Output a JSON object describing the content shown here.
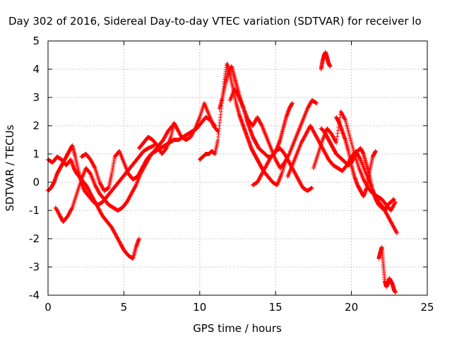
{
  "chart_data": {
    "type": "scatter",
    "title": "Day 302 of 2016, Sidereal Day-to-day VTEC variation (SDTVAR) for receiver lo",
    "xlabel": "GPS time / hours",
    "ylabel": "SDTVAR / TECUs",
    "xlim": [
      0,
      25
    ],
    "ylim": [
      -4,
      5
    ],
    "xticks": [
      "0",
      "5",
      "10",
      "15",
      "20",
      "25"
    ],
    "yticks": [
      "-4",
      "-3",
      "-2",
      "-1",
      "0",
      "1",
      "2",
      "3",
      "4",
      "5"
    ],
    "grid": true,
    "marker_color": "#ff0000",
    "marker": "plus",
    "series": [
      {
        "x": [
          0.0,
          0.3,
          0.6,
          0.9,
          1.2,
          1.5,
          1.7,
          1.9,
          2.2,
          2.5,
          2.7,
          3.0,
          3.3,
          3.6,
          3.9,
          4.2,
          4.5,
          4.8,
          5.0,
          5.3,
          5.6,
          5.8,
          6.0
        ],
        "y": [
          0.8,
          0.7,
          0.9,
          0.8,
          0.6,
          0.8,
          0.5,
          0.3,
          0.1,
          -0.1,
          -0.3,
          -0.6,
          -0.9,
          -1.2,
          -1.4,
          -1.6,
          -1.9,
          -2.2,
          -2.4,
          -2.6,
          -2.7,
          -2.3,
          -2.0
        ]
      },
      {
        "x": [
          0.0,
          0.2,
          0.4,
          0.6,
          0.8,
          1.0,
          1.2,
          1.4,
          1.6,
          1.8,
          2.0,
          2.2,
          2.4,
          2.7,
          3.0,
          3.3,
          3.6,
          3.9,
          4.2,
          4.5,
          4.8,
          5.1,
          5.4,
          5.7,
          6.0,
          6.3,
          6.6,
          7.0
        ],
        "y": [
          -0.3,
          -0.2,
          0.0,
          0.3,
          0.5,
          0.7,
          0.9,
          1.1,
          1.3,
          0.9,
          0.4,
          0.0,
          -0.3,
          -0.5,
          -0.7,
          -0.8,
          -0.7,
          -0.5,
          -0.3,
          -0.1,
          0.1,
          0.3,
          0.5,
          0.7,
          0.9,
          1.1,
          1.2,
          1.3
        ]
      },
      {
        "x": [
          0.5,
          0.8,
          1.0,
          1.3,
          1.6,
          1.9,
          2.2,
          2.5,
          2.8,
          3.1,
          3.4,
          3.7,
          4.0,
          4.3,
          4.6,
          4.9,
          5.2,
          5.5,
          5.8,
          6.1,
          6.4,
          6.7,
          7.0,
          7.3,
          7.6,
          7.9,
          8.2
        ],
        "y": [
          -0.9,
          -1.2,
          -1.4,
          -1.2,
          -0.9,
          -0.4,
          0.1,
          0.5,
          0.3,
          -0.1,
          -0.4,
          -0.6,
          -0.8,
          -0.9,
          -1.0,
          -0.9,
          -0.7,
          -0.4,
          -0.1,
          0.3,
          0.6,
          0.9,
          1.1,
          1.3,
          1.5,
          1.8,
          2.0
        ]
      },
      {
        "x": [
          2.2,
          2.5,
          2.8,
          3.1,
          3.4,
          3.7,
          4.0,
          4.2,
          4.4,
          4.7,
          5.0,
          5.3,
          5.6,
          5.9,
          6.2,
          6.5,
          6.8,
          7.1,
          7.4,
          7.7,
          8.0,
          8.3,
          8.6,
          8.9,
          9.2,
          9.5,
          9.8,
          10.1,
          10.4,
          10.7,
          11.0
        ],
        "y": [
          0.9,
          1.0,
          0.8,
          0.5,
          0.0,
          -0.3,
          -0.2,
          0.3,
          0.9,
          1.1,
          0.7,
          0.3,
          0.1,
          0.2,
          0.5,
          0.8,
          1.0,
          1.1,
          1.2,
          1.3,
          1.4,
          1.5,
          1.5,
          1.6,
          1.7,
          1.8,
          1.9,
          2.1,
          2.3,
          2.2,
          2.0
        ]
      },
      {
        "x": [
          6.0,
          6.3,
          6.6,
          6.9,
          7.2,
          7.5,
          7.8,
          8.1,
          8.3,
          8.5,
          8.8,
          9.1,
          9.4,
          9.7,
          10.0,
          10.3,
          10.6,
          10.9,
          11.2
        ],
        "y": [
          1.2,
          1.4,
          1.6,
          1.5,
          1.3,
          1.0,
          1.2,
          1.6,
          2.1,
          1.9,
          1.6,
          1.5,
          1.6,
          1.9,
          2.3,
          2.8,
          2.4,
          2.0,
          1.8
        ]
      },
      {
        "x": [
          10.0,
          10.2,
          10.4,
          10.6,
          10.8,
          11.0,
          11.2,
          11.4,
          11.6,
          11.8,
          12.0,
          12.2,
          12.4,
          12.6,
          12.8,
          13.0,
          13.2,
          13.4,
          13.6,
          13.8,
          14.0,
          14.2,
          14.5,
          14.8,
          15.1,
          15.4,
          15.7
        ],
        "y": [
          0.8,
          0.9,
          1.0,
          1.0,
          1.1,
          1.0,
          1.5,
          2.5,
          3.5,
          4.2,
          3.8,
          3.3,
          2.8,
          2.4,
          2.1,
          1.8,
          1.5,
          1.2,
          1.0,
          0.8,
          0.6,
          0.4,
          0.2,
          0.0,
          -0.1,
          0.3,
          0.8
        ]
      },
      {
        "x": [
          11.3,
          11.5,
          11.7,
          11.9,
          12.1,
          12.3,
          12.5,
          12.7,
          12.9,
          13.1,
          13.3,
          13.5,
          13.7,
          13.9,
          14.1,
          14.3,
          14.5,
          14.7,
          14.9,
          15.1,
          15.3,
          15.5,
          15.7,
          15.9,
          16.1
        ],
        "y": [
          2.6,
          3.0,
          3.5,
          3.9,
          4.1,
          3.7,
          3.3,
          2.9,
          2.6,
          2.2,
          1.9,
          1.6,
          1.4,
          1.2,
          1.1,
          1.0,
          0.9,
          0.9,
          1.0,
          1.2,
          1.5,
          1.9,
          2.3,
          2.6,
          2.8
        ]
      },
      {
        "x": [
          12.0,
          12.3,
          12.6,
          12.9,
          13.2,
          13.5,
          13.8,
          14.1,
          14.4,
          14.7,
          15.0,
          15.3,
          15.6,
          15.9,
          16.2,
          16.5,
          16.8,
          17.1,
          17.4,
          17.7
        ],
        "y": [
          2.9,
          3.3,
          3.0,
          2.6,
          2.2,
          2.0,
          2.3,
          2.0,
          1.6,
          1.2,
          0.8,
          0.5,
          0.7,
          1.0,
          1.4,
          1.8,
          2.2,
          2.6,
          2.9,
          2.8
        ]
      },
      {
        "x": [
          13.5,
          13.8,
          14.1,
          14.4,
          14.7,
          15.0,
          15.3,
          15.6,
          15.9,
          16.2,
          16.5,
          16.8,
          17.1,
          17.4
        ],
        "y": [
          -0.1,
          0.0,
          0.3,
          0.6,
          0.9,
          1.1,
          1.2,
          1.0,
          0.7,
          0.4,
          0.1,
          -0.2,
          -0.3,
          -0.2
        ]
      },
      {
        "x": [
          15.8,
          16.1,
          16.4,
          16.7,
          17.0,
          17.3,
          17.6,
          17.9,
          18.2,
          18.5,
          18.8,
          19.1,
          19.4,
          19.7,
          20.0,
          20.3,
          20.6,
          20.9,
          21.2,
          21.5,
          21.8,
          22.1,
          22.4,
          22.7,
          23.0
        ],
        "y": [
          0.2,
          0.6,
          1.0,
          1.4,
          1.7,
          2.0,
          1.7,
          1.4,
          1.1,
          0.8,
          0.6,
          0.5,
          0.4,
          0.6,
          0.9,
          1.1,
          0.8,
          0.4,
          0.0,
          -0.4,
          -0.7,
          -0.9,
          -1.2,
          -1.5,
          -1.8
        ]
      },
      {
        "x": [
          17.5,
          17.8,
          18.1,
          18.4,
          18.7,
          19.0,
          19.3,
          19.6,
          19.9,
          20.2,
          20.5,
          20.8,
          21.1,
          21.4,
          21.7,
          22.0,
          22.3,
          22.6,
          22.9
        ],
        "y": [
          0.5,
          1.0,
          1.5,
          1.9,
          1.7,
          1.4,
          2.5,
          2.2,
          1.6,
          1.0,
          0.5,
          0.1,
          -0.2,
          -0.4,
          -0.5,
          -0.6,
          -0.8,
          -1.0,
          -0.7
        ]
      },
      {
        "x": [
          18.0,
          18.2,
          18.4,
          18.6,
          18.8,
          19.0,
          19.2,
          19.4,
          19.6,
          19.8,
          20.0,
          20.2,
          20.4,
          20.6,
          20.8,
          21.0,
          21.2,
          21.4,
          21.6,
          21.8,
          22.0,
          22.2,
          22.4,
          22.6,
          22.8
        ],
        "y": [
          1.9,
          1.8,
          1.6,
          1.4,
          1.2,
          1.0,
          0.9,
          0.8,
          0.7,
          0.6,
          0.7,
          0.9,
          1.1,
          1.2,
          1.0,
          0.6,
          0.2,
          -0.3,
          -0.6,
          -0.8,
          -0.9,
          -1.0,
          -0.8,
          -0.7,
          -0.6
        ]
      },
      {
        "x": [
          18.0,
          18.1,
          18.2,
          18.3,
          18.4,
          18.5,
          18.6
        ],
        "y": [
          4.0,
          4.3,
          4.5,
          4.6,
          4.4,
          4.2,
          4.1
        ]
      },
      {
        "x": [
          21.8,
          21.9,
          22.0,
          22.1,
          22.2,
          22.3,
          22.4,
          22.5,
          22.6,
          22.7,
          22.8,
          22.9
        ],
        "y": [
          -2.7,
          -2.5,
          -2.3,
          -2.9,
          -3.5,
          -3.7,
          -3.6,
          -3.4,
          -3.5,
          -3.6,
          -3.8,
          -3.9
        ]
      },
      {
        "x": [
          19.0,
          19.2,
          19.4,
          19.6,
          19.8,
          20.0,
          20.2,
          20.4,
          20.6,
          20.8,
          21.0,
          21.2,
          21.4,
          21.6
        ],
        "y": [
          2.3,
          2.1,
          1.8,
          1.5,
          1.1,
          0.6,
          0.2,
          -0.1,
          -0.3,
          -0.5,
          -0.2,
          0.4,
          0.9,
          1.1
        ]
      }
    ]
  }
}
